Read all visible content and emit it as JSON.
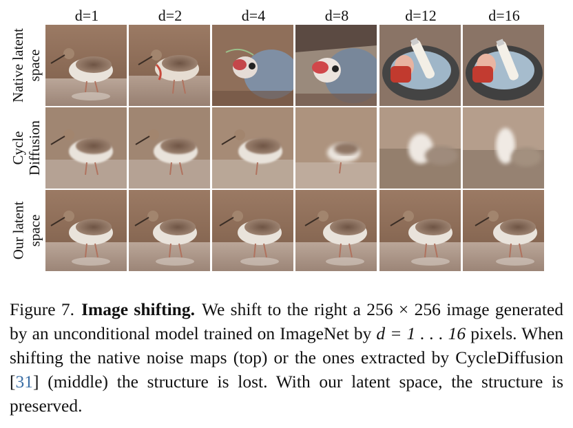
{
  "columns": [
    "d=1",
    "d=2",
    "d=4",
    "d=8",
    "d=12",
    "d=16"
  ],
  "rows": [
    {
      "lines": [
        "Native latent",
        "space"
      ]
    },
    {
      "lines": [
        "Cycle",
        "Diffusion"
      ]
    },
    {
      "lines": [
        "Our latent",
        "space"
      ]
    }
  ],
  "caption": {
    "label": "Figure 7.",
    "title": "Image shifting.",
    "text1": "We shift to the right a 256 × 256 image generated by an unconditional model trained on ImageNet by",
    "math": "d = 1 . . . 16",
    "text2": "pixels. When shifting the native noise maps (top) or the ones extracted by CycleDiffusion [",
    "ref": "31",
    "text3": "] (middle) the structure is lost. With our latent space, the structure is preserved."
  },
  "colors": {
    "mud": "#8a6a55",
    "water": "#b7a398",
    "bird_body": "#e8e2da",
    "bird_spots": "#6e5444",
    "link": "#3a6ea5"
  }
}
